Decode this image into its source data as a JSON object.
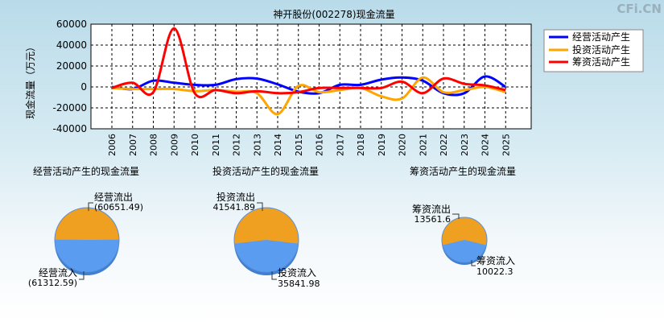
{
  "watermark": "CFi.CN",
  "chart_data": [
    {
      "type": "line",
      "title": "神开股份(002278)现金流量",
      "ylabel": "现金流量（万元）",
      "ylim": [
        -40000,
        60000
      ],
      "yticks": [
        -40000,
        -20000,
        0,
        20000,
        40000,
        60000
      ],
      "categories": [
        "2006",
        "2007",
        "2008",
        "2009",
        "2010",
        "2011",
        "2012",
        "2013",
        "2014",
        "2015",
        "2016",
        "2017",
        "2018",
        "2019",
        "2020",
        "2021",
        "2022",
        "2023",
        "2024",
        "2025"
      ],
      "grid": true,
      "legend_position": "top-right",
      "series": [
        {
          "name": "经营活动产生",
          "color": "#0000ff",
          "values": [
            0,
            -2000,
            6000,
            4000,
            2000,
            2000,
            7500,
            8000,
            2500,
            -4500,
            -6000,
            2000,
            2000,
            7000,
            9000,
            6000,
            -6000,
            -6000,
            10000,
            0
          ]
        },
        {
          "name": "投资活动产生",
          "color": "#ffa500",
          "values": [
            -1000,
            -2000,
            -2000,
            -2000,
            -4000,
            -3000,
            -4500,
            -6000,
            -26000,
            1000,
            -5000,
            -3000,
            -1000,
            -9000,
            -11000,
            9000,
            -5000,
            -3000,
            0,
            -5000
          ]
        },
        {
          "name": "筹资活动产生",
          "color": "#ff0000",
          "values": [
            -1000,
            4000,
            -5000,
            56000,
            -6000,
            -3000,
            -6000,
            -4000,
            -6000,
            -5000,
            -1000,
            -1000,
            -1000,
            -1000,
            5000,
            -6000,
            8000,
            3000,
            1500,
            -3000
          ]
        }
      ]
    },
    {
      "type": "pie",
      "title": "经营活动产生的现金流量",
      "slices": [
        {
          "label": "经营流出",
          "value": 60651.49,
          "value_text": "(60651.49)",
          "color": "#f0a020"
        },
        {
          "label": "经营流入",
          "value": 61312.59,
          "value_text": "(61312.59)",
          "color": "#5a9cf0"
        }
      ]
    },
    {
      "type": "pie",
      "title": "投资活动产生的现金流量",
      "slices": [
        {
          "label": "投资流出",
          "value": 41541.89,
          "value_text": "41541.89",
          "color": "#f0a020"
        },
        {
          "label": "投资流入",
          "value": 35841.98,
          "value_text": "35841.98",
          "color": "#5a9cf0"
        }
      ]
    },
    {
      "type": "pie",
      "title": "筹资活动产生的现金流量",
      "slices": [
        {
          "label": "筹资流出",
          "value": 13561.6,
          "value_text": "13561.6",
          "color": "#f0a020"
        },
        {
          "label": "筹资流入",
          "value": 10022.3,
          "value_text": "10022.3",
          "color": "#5a9cf0"
        }
      ]
    }
  ]
}
